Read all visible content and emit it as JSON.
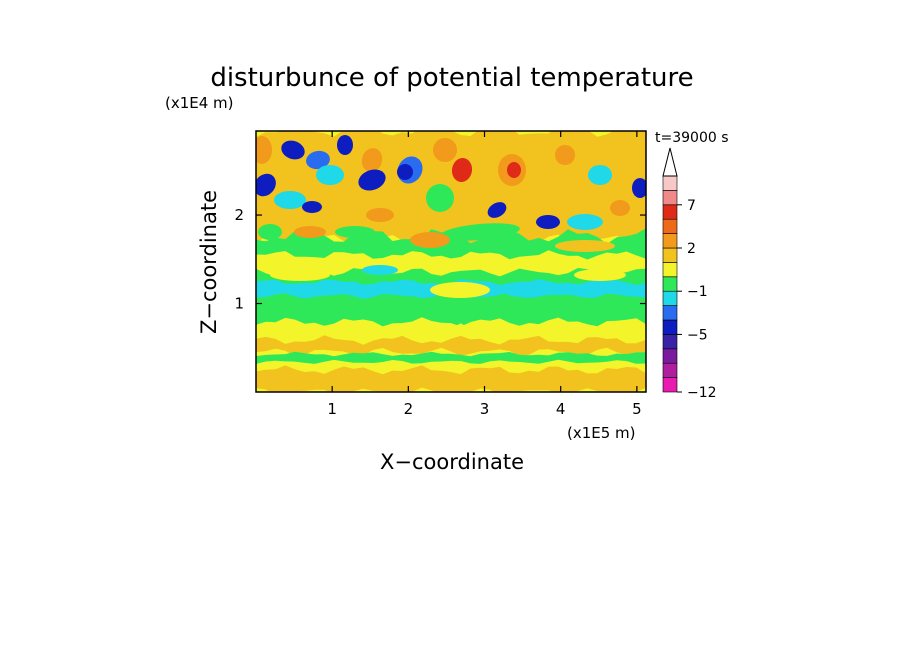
{
  "chart_data": {
    "type": "heatmap",
    "title": "disturbunce of potential temperature",
    "time_label": "t=39000 s",
    "xlabel": "X−coordinate",
    "ylabel": "Z−coordinate",
    "x_unit": "(x1E5 m)",
    "y_unit": "(x1E4 m)",
    "xlim": [
      0,
      5.12
    ],
    "ylim": [
      0,
      2.95
    ],
    "x_ticks": [
      {
        "value": 1,
        "label": "1"
      },
      {
        "value": 2,
        "label": "2"
      },
      {
        "value": 3,
        "label": "3"
      },
      {
        "value": 4,
        "label": "4"
      },
      {
        "value": 5,
        "label": "5"
      }
    ],
    "y_ticks": [
      {
        "value": 1,
        "label": "1"
      },
      {
        "value": 2,
        "label": "2"
      }
    ],
    "colorbar": {
      "levels": [
        {
          "color": "#e81ab0"
        },
        {
          "color": "#b01ea0"
        },
        {
          "color": "#7a1a9e"
        },
        {
          "color": "#3a22a8"
        },
        {
          "color": "#0d1dc0"
        },
        {
          "color": "#2a6cf0"
        },
        {
          "color": "#1fd8e8"
        },
        {
          "color": "#2fe85a"
        },
        {
          "color": "#f4f42a"
        },
        {
          "color": "#f2c21e"
        },
        {
          "color": "#f29a1c"
        },
        {
          "color": "#ee6a18"
        },
        {
          "color": "#e02a18"
        },
        {
          "color": "#f08a8a"
        },
        {
          "color": "#f6c8c8"
        }
      ],
      "labels": [
        {
          "value": "−12",
          "boundary": 0
        },
        {
          "value": "−5",
          "boundary": 4
        },
        {
          "value": "−1",
          "boundary": 7
        },
        {
          "value": "2",
          "boundary": 10
        },
        {
          "value": "7",
          "boundary": 13
        }
      ],
      "extend": "max"
    }
  }
}
